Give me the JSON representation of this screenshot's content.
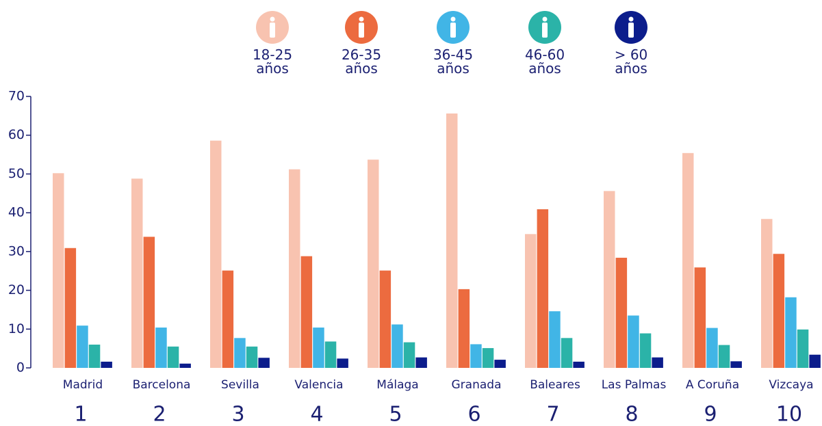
{
  "chart_data": {
    "type": "bar",
    "categories": [
      "Madrid",
      "Barcelona",
      "Sevilla",
      "Valencia",
      "Málaga",
      "Granada",
      "Baleares",
      "Las Palmas",
      "A Coruña",
      "Vizcaya"
    ],
    "ranks": [
      "1",
      "2",
      "3",
      "4",
      "5",
      "6",
      "7",
      "8",
      "9",
      "10"
    ],
    "series": [
      {
        "name": "18-25 años",
        "color": "#f8c3b0",
        "values": [
          50.2,
          48.8,
          58.6,
          51.2,
          53.7,
          65.6,
          34.5,
          45.6,
          55.4,
          38.4
        ]
      },
      {
        "name": "26-35 años",
        "color": "#ec6b3f",
        "values": [
          30.9,
          33.8,
          25.1,
          28.8,
          25.1,
          20.3,
          40.9,
          28.4,
          25.9,
          29.4
        ]
      },
      {
        "name": "36-45 años",
        "color": "#41b5e6",
        "values": [
          10.9,
          10.4,
          7.7,
          10.4,
          11.2,
          6.1,
          14.6,
          13.5,
          10.3,
          18.2
        ]
      },
      {
        "name": "46-60 años",
        "color": "#2bb3a8",
        "values": [
          6.0,
          5.5,
          5.5,
          6.8,
          6.6,
          5.1,
          7.7,
          8.9,
          5.9,
          9.9
        ]
      },
      {
        "name": "> 60 años",
        "color": "#0c1d8c",
        "values": [
          1.6,
          1.1,
          2.6,
          2.4,
          2.7,
          2.1,
          1.6,
          2.7,
          1.7,
          3.4
        ]
      }
    ],
    "ylim": [
      0,
      70
    ],
    "yticks": [
      0,
      10,
      20,
      30,
      40,
      50,
      60,
      70
    ],
    "legend": "top"
  }
}
